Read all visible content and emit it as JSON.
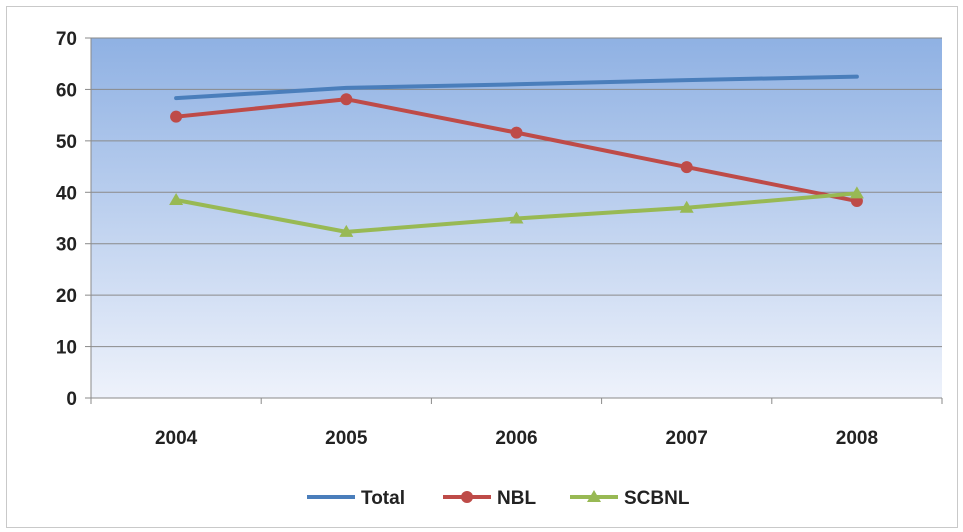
{
  "chart_data": {
    "type": "line",
    "categories": [
      "2004",
      "2005",
      "2006",
      "2007",
      "2008"
    ],
    "ylim": [
      0,
      70
    ],
    "yticks": [
      0,
      10,
      20,
      30,
      40,
      50,
      60,
      70
    ],
    "grid": true,
    "legend_position": "bottom",
    "plot_background": [
      "#8fb1e3",
      "#eef2fb"
    ],
    "series": [
      {
        "name": "Total",
        "values": [
          58.3,
          60.3,
          61.0,
          61.8,
          62.5
        ],
        "color": "#4a7ebb",
        "marker": "none"
      },
      {
        "name": "NBL",
        "values": [
          54.7,
          58.1,
          51.6,
          44.9,
          38.3
        ],
        "color": "#be4b48",
        "marker": "circle"
      },
      {
        "name": "SCBNL",
        "values": [
          38.5,
          32.3,
          34.9,
          37.0,
          39.8
        ],
        "color": "#98b954",
        "marker": "triangle"
      }
    ]
  }
}
